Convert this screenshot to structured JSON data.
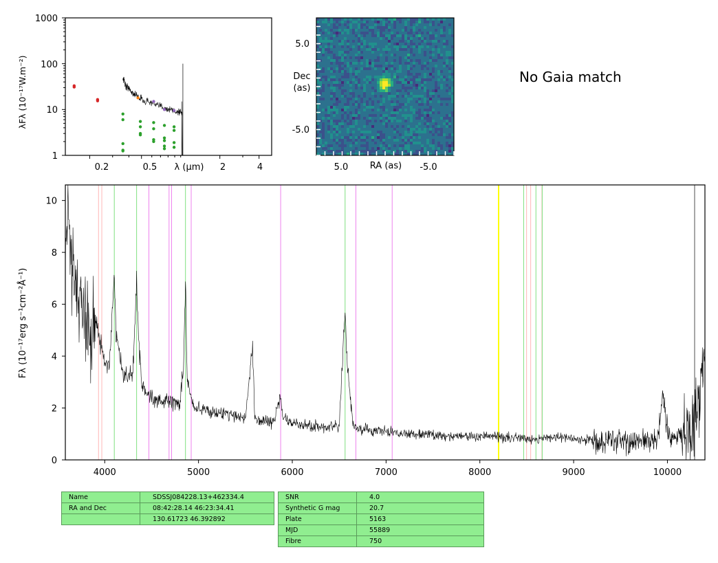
{
  "gaia_text": "No Gaia match",
  "sed_panel": {
    "ylabel": "λFλ (10⁻¹⁷W.m⁻²)",
    "xlabel": "λ (μm)",
    "ytick_labels": [
      "1",
      "10",
      "100",
      "1000"
    ],
    "xtick_labels": [
      "0.2",
      "0.5",
      "2",
      "4"
    ]
  },
  "image_panel": {
    "ylabel_line1": "Dec",
    "ylabel_line2": "(as)",
    "xlabel": "RA (as)",
    "ytick_labels": [
      "5.0",
      "-5.0"
    ],
    "xtick_labels": [
      "5.0",
      "-5.0"
    ]
  },
  "spectrum_panel": {
    "ylabel": "Fλ (10⁻¹⁷erg s⁻¹cm⁻²Å⁻¹)",
    "ytick_labels": [
      "0",
      "2",
      "4",
      "6",
      "8",
      "10"
    ],
    "xtick_labels": [
      "4000",
      "5000",
      "6000",
      "7000",
      "8000",
      "9000",
      "10000"
    ]
  },
  "table_left": [
    [
      "Name",
      "SDSSJ084228.13+462334.4"
    ],
    [
      "RA and Dec",
      "08:42:28.14    46:23:34.41"
    ],
    [
      "",
      "130.61723    46.392892"
    ]
  ],
  "table_right": [
    [
      "SNR",
      "4.0"
    ],
    [
      "Synthetic G mag",
      "20.7"
    ],
    [
      "Plate",
      "5163"
    ],
    [
      "MJD",
      "55889"
    ],
    [
      "Fibre",
      "750"
    ]
  ],
  "chart_data": [
    {
      "type": "scatter",
      "panel": "sed",
      "xscale": "log",
      "yscale": "log",
      "xlim": [
        0.13,
        5.0
      ],
      "ylim": [
        1,
        1000
      ],
      "points": [
        {
          "x": 0.152,
          "y": 33,
          "color": "#d62728"
        },
        {
          "x": 0.152,
          "y": 31,
          "color": "#d62728"
        },
        {
          "x": 0.23,
          "y": 16.5,
          "color": "#d62728"
        },
        {
          "x": 0.23,
          "y": 15.5,
          "color": "#d62728"
        },
        {
          "x": 0.47,
          "y": 18,
          "color": "#ff7f0e"
        },
        {
          "x": 0.62,
          "y": 15,
          "color": "#9467bd"
        },
        {
          "x": 0.75,
          "y": 10,
          "color": "#9467bd"
        },
        {
          "x": 0.89,
          "y": 9.5,
          "color": "#9467bd"
        },
        {
          "x": 0.36,
          "y": 8,
          "color": "#2ca02c"
        },
        {
          "x": 0.36,
          "y": 6,
          "color": "#2ca02c"
        },
        {
          "x": 0.36,
          "y": 1.8,
          "color": "#2ca02c"
        },
        {
          "x": 0.36,
          "y": 1.3,
          "color": "#2ca02c"
        },
        {
          "x": 0.36,
          "y": 1.25,
          "color": "#2ca02c"
        },
        {
          "x": 0.49,
          "y": 5.5,
          "color": "#2ca02c"
        },
        {
          "x": 0.49,
          "y": 4.2,
          "color": "#2ca02c"
        },
        {
          "x": 0.49,
          "y": 3,
          "color": "#2ca02c"
        },
        {
          "x": 0.49,
          "y": 2.8,
          "color": "#2ca02c"
        },
        {
          "x": 0.62,
          "y": 5.2,
          "color": "#2ca02c"
        },
        {
          "x": 0.62,
          "y": 3.8,
          "color": "#2ca02c"
        },
        {
          "x": 0.62,
          "y": 2.2,
          "color": "#2ca02c"
        },
        {
          "x": 0.62,
          "y": 2.0,
          "color": "#2ca02c"
        },
        {
          "x": 0.75,
          "y": 4.5,
          "color": "#2ca02c"
        },
        {
          "x": 0.75,
          "y": 2.4,
          "color": "#2ca02c"
        },
        {
          "x": 0.75,
          "y": 2.1,
          "color": "#2ca02c"
        },
        {
          "x": 0.75,
          "y": 1.6,
          "color": "#2ca02c"
        },
        {
          "x": 0.75,
          "y": 1.4,
          "color": "#2ca02c"
        },
        {
          "x": 0.89,
          "y": 4.2,
          "color": "#2ca02c"
        },
        {
          "x": 0.89,
          "y": 3.5,
          "color": "#2ca02c"
        },
        {
          "x": 0.89,
          "y": 1.9,
          "color": "#2ca02c"
        },
        {
          "x": 0.89,
          "y": 1.5,
          "color": "#2ca02c"
        }
      ],
      "spectrum_overlay": {
        "x": [
          0.36,
          0.37,
          0.38,
          0.39,
          0.4,
          0.42,
          0.44,
          0.46,
          0.48,
          0.5,
          0.55,
          0.6,
          0.65,
          0.7,
          0.75,
          0.8,
          0.85,
          0.9,
          0.95,
          1.0,
          1.03
        ],
        "y": [
          48,
          42,
          30,
          32,
          28,
          24,
          22,
          20,
          18,
          17,
          15,
          14,
          12,
          12,
          11,
          10,
          10,
          9,
          9,
          9,
          8
        ]
      }
    },
    {
      "type": "heatmap",
      "panel": "image",
      "ra_range": [
        8.0,
        -8.0
      ],
      "dec_range": [
        -8.0,
        8.0
      ],
      "source_center": [
        0.0,
        0.0
      ],
      "colormap": "viridis"
    },
    {
      "type": "line",
      "panel": "spectrum",
      "xlim": [
        3580,
        10400
      ],
      "ylim": [
        0,
        10.6
      ],
      "x": [
        3580,
        3600,
        3650,
        3700,
        3750,
        3800,
        3850,
        3900,
        3950,
        4000,
        4050,
        4080,
        4100,
        4120,
        4200,
        4300,
        4340,
        4360,
        4400,
        4500,
        4600,
        4700,
        4800,
        4840,
        4861,
        4880,
        4950,
        5000,
        5100,
        5200,
        5300,
        5400,
        5500,
        5577,
        5600,
        5700,
        5800,
        5876,
        5900,
        6000,
        6100,
        6200,
        6300,
        6400,
        6500,
        6540,
        6563,
        6590,
        6650,
        6700,
        6800,
        6900,
        7000,
        7100,
        7200,
        7300,
        7400,
        7500,
        7600,
        7700,
        7800,
        7900,
        8000,
        8100,
        8200,
        8300,
        8400,
        8500,
        8600,
        8700,
        8800,
        8900,
        9000,
        9100,
        9200,
        9300,
        9400,
        9500,
        9600,
        9700,
        9800,
        9900,
        9950,
        10000,
        10050,
        10100,
        10200,
        10300,
        10350,
        10400
      ],
      "y": [
        8.5,
        9.8,
        7.5,
        6.8,
        6.2,
        5.5,
        5.0,
        5.6,
        4.5,
        3.8,
        3.6,
        5.5,
        7.1,
        4.8,
        3.2,
        3.3,
        7.0,
        4.6,
        2.8,
        2.4,
        2.3,
        2.2,
        2.2,
        3.5,
        6.8,
        3.0,
        2.0,
        2.0,
        1.9,
        1.8,
        1.8,
        1.7,
        1.6,
        4.4,
        1.6,
        1.5,
        1.45,
        2.5,
        1.6,
        1.4,
        1.35,
        1.3,
        1.3,
        1.25,
        1.25,
        4.2,
        5.6,
        3.4,
        1.3,
        1.2,
        1.15,
        1.1,
        1.1,
        1.05,
        1.0,
        1.0,
        1.0,
        0.95,
        0.95,
        0.9,
        0.95,
        0.9,
        0.9,
        0.9,
        0.9,
        0.85,
        0.85,
        0.85,
        0.8,
        0.85,
        0.9,
        0.85,
        0.8,
        0.75,
        0.8,
        0.7,
        0.8,
        0.7,
        0.7,
        0.75,
        0.7,
        0.8,
        2.5,
        1.0,
        0.8,
        0.8,
        1.2,
        1.5,
        2.8,
        4.5
      ],
      "lines": [
        {
          "x": 3934,
          "color": "#ffb6b6"
        },
        {
          "x": 3969,
          "color": "#ffb6b6"
        },
        {
          "x": 4102,
          "color": "#7ee07e"
        },
        {
          "x": 4340,
          "color": "#7ee07e"
        },
        {
          "x": 4471,
          "color": "#ee82ee"
        },
        {
          "x": 4686,
          "color": "#ee82ee"
        },
        {
          "x": 4713,
          "color": "#ee82ee"
        },
        {
          "x": 4861,
          "color": "#7ee07e"
        },
        {
          "x": 4922,
          "color": "#ee82ee"
        },
        {
          "x": 5876,
          "color": "#ee82ee"
        },
        {
          "x": 6563,
          "color": "#7ee07e"
        },
        {
          "x": 6678,
          "color": "#ee82ee"
        },
        {
          "x": 7065,
          "color": "#ee82ee"
        },
        {
          "x": 8200,
          "color": "#ffff00"
        },
        {
          "x": 8467,
          "color": "#7ee07e"
        },
        {
          "x": 8498,
          "color": "#ffb6b6"
        },
        {
          "x": 8542,
          "color": "#ffb6b6"
        },
        {
          "x": 8598,
          "color": "#7ee07e"
        },
        {
          "x": 8662,
          "color": "#ffb6b6"
        },
        {
          "x": 8665,
          "color": "#7ee07e"
        }
      ]
    }
  ]
}
